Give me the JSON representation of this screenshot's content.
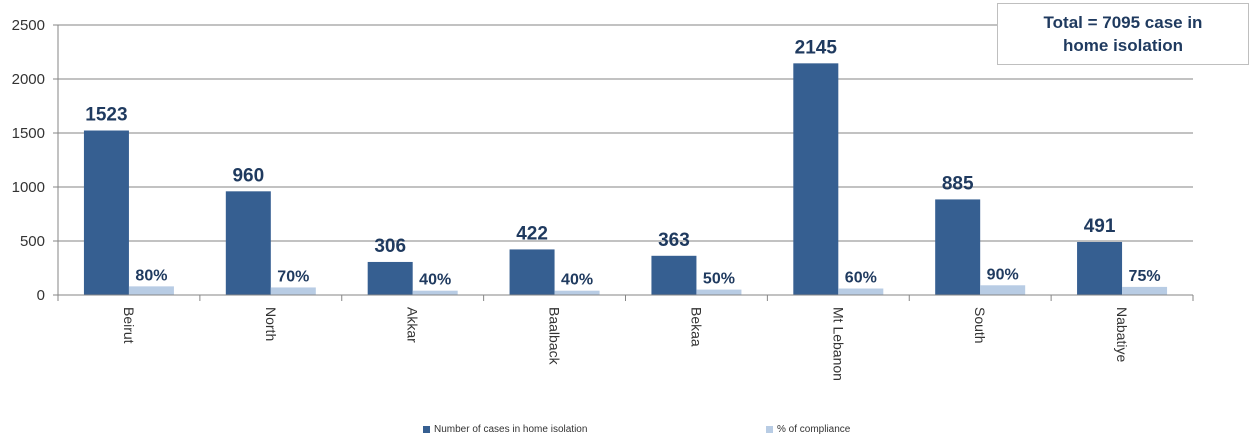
{
  "chart_data": {
    "type": "bar",
    "categories": [
      "Beirut",
      "North",
      "Akkar",
      "Baalback",
      "Bekaa",
      "Mt Lebanon",
      "South",
      "Nabatiye"
    ],
    "series": [
      {
        "name": "Number of cases in home isolation",
        "values": [
          1523,
          960,
          306,
          422,
          363,
          2145,
          885,
          491
        ],
        "color": "#365f91"
      },
      {
        "name": "% of compliance",
        "values": [
          80,
          70,
          40,
          40,
          50,
          60,
          90,
          75
        ],
        "color": "#b8cce4",
        "labels": [
          "80%",
          "70%",
          "40%",
          "40%",
          "50%",
          "60%",
          "90%",
          "75%"
        ]
      }
    ],
    "yticks": [
      0,
      500,
      1000,
      1500,
      2000,
      2500
    ],
    "ylim": [
      0,
      2500
    ],
    "grid": true,
    "legend_position": "bottom"
  },
  "annotation": {
    "line1": "Total = 7095 case in",
    "line2": "home isolation"
  },
  "legend": {
    "series1": "Number of cases in home isolation",
    "series2": "% of compliance"
  }
}
